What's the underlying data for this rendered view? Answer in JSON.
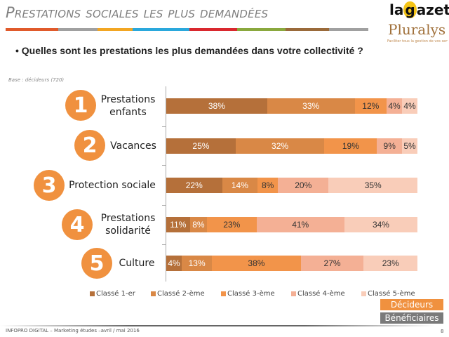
{
  "header": {
    "title": "Prestations sociales les plus demandées",
    "question": "•  Quelles sont les prestations les plus demandées dans votre collectivité ?",
    "base": "Base : décideurs (720)"
  },
  "colorbar": [
    "#e05a2b",
    "#a0a0a0",
    "#f2a623",
    "#2aa8dc",
    "#d9282e",
    "#8aa83e",
    "#9a6a3a",
    "#a0a0a0"
  ],
  "logos": {
    "gazette_pre": "la",
    "gazette_g": "g",
    "gazette_post": "azette",
    "pluralys": "Pluralys",
    "pluralys_sub": "Faciliter tous la gestion de vos services sociaux !"
  },
  "chart_data": {
    "type": "bar",
    "orientation": "horizontal-stacked-100",
    "categories": [
      "Prestations enfants",
      "Vacances",
      "Protection sociale",
      "Prestations solidarité",
      "Culture"
    ],
    "ranks": [
      "1",
      "2",
      "3",
      "4",
      "5"
    ],
    "series": [
      {
        "name": "Classé 1-er",
        "color": "#b5703a",
        "values": [
          38,
          25,
          22,
          11,
          4
        ]
      },
      {
        "name": "Classé 2-ème",
        "color": "#d98846",
        "values": [
          33,
          32,
          14,
          8,
          13
        ]
      },
      {
        "name": "Classé 3-ème",
        "color": "#f2944a",
        "values": [
          12,
          19,
          8,
          23,
          38
        ]
      },
      {
        "name": "Classé 4-ème",
        "color": "#f4b095",
        "values": [
          4,
          9,
          20,
          41,
          27
        ]
      },
      {
        "name": "Classé 5-ème",
        "color": "#f9cdb9",
        "values": [
          4,
          5,
          35,
          34,
          23
        ]
      }
    ],
    "legend": "bottom",
    "grid": false
  },
  "buttons": {
    "decideurs": "Décideurs",
    "beneficiaires": "Bénéficiaires"
  },
  "footer": {
    "text": "INFOPRO DIGITAL – Marketing études –avril / mai 2016",
    "page": "8"
  }
}
